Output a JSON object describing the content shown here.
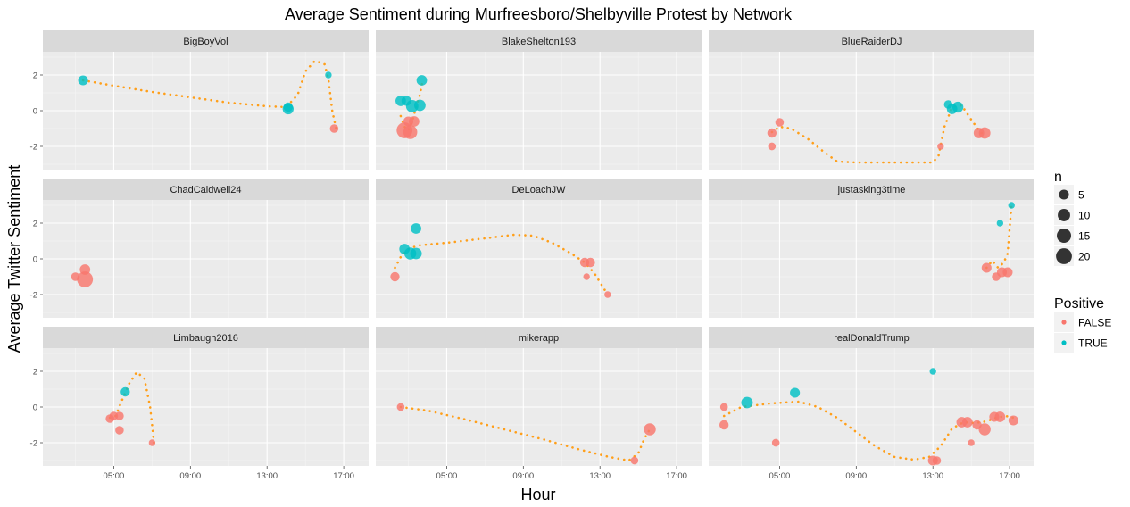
{
  "chart_data": {
    "type": "scatter",
    "title": "Average Sentiment during Murfreesboro/Shelbyville Protest by Network",
    "xlabel": "Hour",
    "ylabel": "Average Twitter Sentiment",
    "xlim": [
      1.3,
      18.3
    ],
    "ylim": [
      -3.3,
      3.3
    ],
    "x_ticks": [
      5,
      9,
      13,
      17
    ],
    "x_tick_labels": [
      "05:00",
      "09:00",
      "13:00",
      "17:00"
    ],
    "y_ticks": [
      -2,
      0,
      2
    ],
    "y_tick_labels": [
      "-2",
      "0",
      "2"
    ],
    "smooth_color": "#ff9f1a",
    "colors": {
      "FALSE": "#f8766d",
      "TRUE": "#00bfc4"
    },
    "legend": {
      "size_title": "n",
      "size_entries": [
        {
          "label": "5",
          "n": 5
        },
        {
          "label": "10",
          "n": 10
        },
        {
          "label": "15",
          "n": 15
        },
        {
          "label": "20",
          "n": 20
        }
      ],
      "color_title": "Positive",
      "color_entries": [
        {
          "label": "FALSE",
          "key": "FALSE"
        },
        {
          "label": "TRUE",
          "key": "TRUE"
        }
      ]
    },
    "panels": [
      {
        "name": "BigBoyVol",
        "points": [
          {
            "x": 3.4,
            "y": 1.7,
            "n": 5,
            "positive": true
          },
          {
            "x": 14.1,
            "y": 0.2,
            "n": 4,
            "positive": true
          },
          {
            "x": 14.1,
            "y": 0.1,
            "n": 7,
            "positive": true
          },
          {
            "x": 16.2,
            "y": 2.0,
            "n": 1,
            "positive": true
          },
          {
            "x": 16.5,
            "y": -1.0,
            "n": 3,
            "positive": false
          }
        ],
        "smooth": [
          [
            3.4,
            1.7
          ],
          [
            5,
            1.4
          ],
          [
            7,
            1.05
          ],
          [
            9,
            0.75
          ],
          [
            11,
            0.45
          ],
          [
            13,
            0.25
          ],
          [
            14,
            0.2
          ],
          [
            14.6,
            0.9
          ],
          [
            15,
            2.2
          ],
          [
            15.5,
            2.8
          ],
          [
            16,
            2.6
          ],
          [
            16.2,
            1.8
          ],
          [
            16.4,
            0.0
          ],
          [
            16.6,
            -1.0
          ]
        ]
      },
      {
        "name": "BlakeShelton193",
        "points": [
          {
            "x": 2.6,
            "y": 0.55,
            "n": 6,
            "positive": true
          },
          {
            "x": 2.9,
            "y": 0.55,
            "n": 5,
            "positive": true
          },
          {
            "x": 3.2,
            "y": 0.25,
            "n": 10,
            "positive": true
          },
          {
            "x": 3.6,
            "y": 0.3,
            "n": 8,
            "positive": true
          },
          {
            "x": 3.7,
            "y": 1.7,
            "n": 6,
            "positive": true
          },
          {
            "x": 3.0,
            "y": -0.6,
            "n": 5,
            "positive": false
          },
          {
            "x": 3.3,
            "y": -0.6,
            "n": 6,
            "positive": false
          },
          {
            "x": 2.8,
            "y": -1.1,
            "n": 20,
            "positive": false
          },
          {
            "x": 3.1,
            "y": -1.2,
            "n": 14,
            "positive": false
          }
        ],
        "smooth": [
          [
            2.6,
            -0.3
          ],
          [
            2.8,
            -0.9
          ],
          [
            3.0,
            -1.1
          ],
          [
            3.2,
            -0.6
          ],
          [
            3.4,
            0.2
          ],
          [
            3.6,
            0.9
          ],
          [
            3.75,
            1.7
          ]
        ]
      },
      {
        "name": "BlueRaiderDJ",
        "points": [
          {
            "x": 4.6,
            "y": -1.25,
            "n": 4,
            "positive": false
          },
          {
            "x": 4.6,
            "y": -2.0,
            "n": 2,
            "positive": false
          },
          {
            "x": 5.0,
            "y": -0.65,
            "n": 3,
            "positive": false
          },
          {
            "x": 13.4,
            "y": -2.0,
            "n": 1,
            "positive": false
          },
          {
            "x": 13.8,
            "y": 0.35,
            "n": 3,
            "positive": true
          },
          {
            "x": 14.0,
            "y": 0.1,
            "n": 6,
            "positive": true
          },
          {
            "x": 14.3,
            "y": 0.2,
            "n": 7,
            "positive": true
          },
          {
            "x": 15.4,
            "y": -1.25,
            "n": 6,
            "positive": false
          },
          {
            "x": 15.7,
            "y": -1.25,
            "n": 8,
            "positive": false
          }
        ],
        "smooth": [
          [
            4.6,
            -1.2
          ],
          [
            5,
            -0.9
          ],
          [
            5.6,
            -1.0
          ],
          [
            6.5,
            -1.6
          ],
          [
            7.3,
            -2.3
          ],
          [
            8,
            -2.85
          ],
          [
            9,
            -2.9
          ],
          [
            10,
            -2.9
          ],
          [
            11,
            -2.9
          ],
          [
            12,
            -2.9
          ],
          [
            13,
            -2.9
          ],
          [
            13.3,
            -2.5
          ],
          [
            13.6,
            -0.9
          ],
          [
            14,
            0.2
          ],
          [
            14.5,
            0.3
          ],
          [
            15,
            -0.5
          ],
          [
            15.5,
            -1.25
          ],
          [
            15.8,
            -1.25
          ]
        ]
      },
      {
        "name": "ChadCaldwell24",
        "points": [
          {
            "x": 3.0,
            "y": -1.0,
            "n": 3,
            "positive": false
          },
          {
            "x": 3.5,
            "y": -0.6,
            "n": 6,
            "positive": false
          },
          {
            "x": 3.5,
            "y": -1.15,
            "n": 20,
            "positive": false
          }
        ],
        "smooth": []
      },
      {
        "name": "DeLoachJW",
        "points": [
          {
            "x": 2.3,
            "y": -1.0,
            "n": 4,
            "positive": false
          },
          {
            "x": 2.8,
            "y": 0.55,
            "n": 6,
            "positive": true
          },
          {
            "x": 3.1,
            "y": 0.3,
            "n": 9,
            "positive": true
          },
          {
            "x": 3.4,
            "y": 0.3,
            "n": 8,
            "positive": true
          },
          {
            "x": 3.4,
            "y": 1.7,
            "n": 6,
            "positive": true
          },
          {
            "x": 12.2,
            "y": -0.2,
            "n": 4,
            "positive": false
          },
          {
            "x": 12.5,
            "y": -0.2,
            "n": 4,
            "positive": false
          },
          {
            "x": 12.3,
            "y": -1.0,
            "n": 1,
            "positive": false
          },
          {
            "x": 13.4,
            "y": -2.0,
            "n": 1,
            "positive": false
          }
        ],
        "smooth": [
          [
            2.3,
            -0.5
          ],
          [
            2.6,
            0.1
          ],
          [
            3,
            0.55
          ],
          [
            3.5,
            0.75
          ],
          [
            5,
            0.9
          ],
          [
            7,
            1.15
          ],
          [
            8.5,
            1.35
          ],
          [
            9.5,
            1.3
          ],
          [
            10.5,
            0.9
          ],
          [
            11.5,
            0.3
          ],
          [
            12.2,
            -0.2
          ],
          [
            12.7,
            -0.8
          ],
          [
            13.4,
            -2.0
          ]
        ]
      },
      {
        "name": "justasking3time",
        "points": [
          {
            "x": 15.8,
            "y": -0.5,
            "n": 5,
            "positive": false
          },
          {
            "x": 16.3,
            "y": -1.0,
            "n": 3,
            "positive": false
          },
          {
            "x": 16.6,
            "y": -0.75,
            "n": 5,
            "positive": false
          },
          {
            "x": 16.9,
            "y": -0.75,
            "n": 5,
            "positive": false
          },
          {
            "x": 16.5,
            "y": 2.0,
            "n": 1,
            "positive": true
          },
          {
            "x": 17.1,
            "y": 3.0,
            "n": 1,
            "positive": true
          }
        ],
        "smooth": [
          [
            15.8,
            -0.5
          ],
          [
            16.1,
            -0.1
          ],
          [
            16.4,
            -0.5
          ],
          [
            16.7,
            -0.2
          ],
          [
            16.9,
            0.3
          ],
          [
            17.1,
            3.0
          ]
        ]
      },
      {
        "name": "Limbaugh2016",
        "points": [
          {
            "x": 4.8,
            "y": -0.65,
            "n": 3,
            "positive": false
          },
          {
            "x": 5.0,
            "y": -0.5,
            "n": 3,
            "positive": false
          },
          {
            "x": 5.3,
            "y": -0.5,
            "n": 3,
            "positive": false
          },
          {
            "x": 5.3,
            "y": -1.3,
            "n": 3,
            "positive": false
          },
          {
            "x": 5.6,
            "y": 0.85,
            "n": 4,
            "positive": true
          },
          {
            "x": 7.0,
            "y": -2.0,
            "n": 1,
            "positive": false
          }
        ],
        "smooth": [
          [
            4.8,
            -0.6
          ],
          [
            5.1,
            -0.5
          ],
          [
            5.4,
            0.3
          ],
          [
            5.8,
            1.3
          ],
          [
            6.2,
            1.95
          ],
          [
            6.6,
            1.6
          ],
          [
            6.9,
            0.0
          ],
          [
            7.1,
            -2.0
          ]
        ]
      },
      {
        "name": "mikerapp",
        "points": [
          {
            "x": 2.6,
            "y": 0.0,
            "n": 2,
            "positive": false
          },
          {
            "x": 14.8,
            "y": -3.0,
            "n": 2,
            "positive": false
          },
          {
            "x": 15.6,
            "y": -1.25,
            "n": 9,
            "positive": false
          }
        ],
        "smooth": [
          [
            2.6,
            0.0
          ],
          [
            4,
            -0.2
          ],
          [
            6,
            -0.7
          ],
          [
            8,
            -1.25
          ],
          [
            10,
            -1.8
          ],
          [
            12,
            -2.4
          ],
          [
            13.5,
            -2.8
          ],
          [
            14.5,
            -3.0
          ],
          [
            15,
            -2.6
          ],
          [
            15.3,
            -1.8
          ],
          [
            15.6,
            -1.25
          ]
        ]
      },
      {
        "name": "realDonaldTrump",
        "points": [
          {
            "x": 2.1,
            "y": 0.0,
            "n": 2,
            "positive": false
          },
          {
            "x": 2.1,
            "y": -1.0,
            "n": 4,
            "positive": false
          },
          {
            "x": 3.3,
            "y": 0.25,
            "n": 8,
            "positive": true
          },
          {
            "x": 4.8,
            "y": -2.0,
            "n": 2,
            "positive": false
          },
          {
            "x": 5.8,
            "y": 0.8,
            "n": 5,
            "positive": true
          },
          {
            "x": 13.0,
            "y": -3.0,
            "n": 5,
            "positive": false
          },
          {
            "x": 13.2,
            "y": -3.0,
            "n": 3,
            "positive": false
          },
          {
            "x": 13.0,
            "y": 2.0,
            "n": 1,
            "positive": true
          },
          {
            "x": 14.5,
            "y": -0.85,
            "n": 6,
            "positive": false
          },
          {
            "x": 14.8,
            "y": -0.85,
            "n": 6,
            "positive": false
          },
          {
            "x": 15.0,
            "y": -2.0,
            "n": 1,
            "positive": false
          },
          {
            "x": 15.3,
            "y": -1.0,
            "n": 4,
            "positive": false
          },
          {
            "x": 15.7,
            "y": -1.25,
            "n": 9,
            "positive": false
          },
          {
            "x": 16.2,
            "y": -0.55,
            "n": 5,
            "positive": false
          },
          {
            "x": 16.5,
            "y": -0.55,
            "n": 6,
            "positive": false
          },
          {
            "x": 17.2,
            "y": -0.75,
            "n": 5,
            "positive": false
          }
        ],
        "smooth": [
          [
            2.1,
            -0.5
          ],
          [
            3,
            0.0
          ],
          [
            4.5,
            0.2
          ],
          [
            6,
            0.3
          ],
          [
            7,
            0.0
          ],
          [
            8,
            -0.6
          ],
          [
            9,
            -1.4
          ],
          [
            10,
            -2.2
          ],
          [
            11,
            -2.8
          ],
          [
            12,
            -2.95
          ],
          [
            12.8,
            -2.8
          ],
          [
            13.4,
            -2.2
          ],
          [
            14,
            -1.2
          ],
          [
            14.6,
            -0.85
          ],
          [
            15.2,
            -0.9
          ],
          [
            15.8,
            -0.8
          ],
          [
            16.3,
            -0.6
          ],
          [
            16.8,
            -0.5
          ],
          [
            17.2,
            -0.6
          ]
        ]
      }
    ]
  }
}
